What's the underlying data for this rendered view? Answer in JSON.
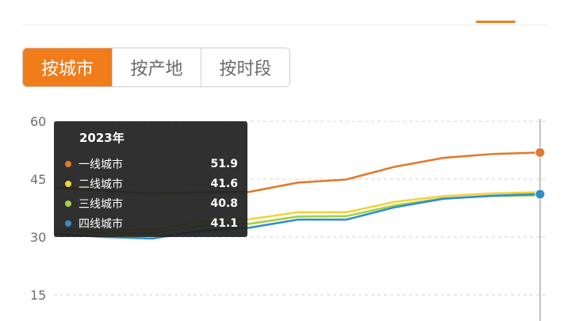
{
  "tabs": [
    {
      "label": "按城市",
      "active": true
    },
    {
      "label": "按产地",
      "active": false
    },
    {
      "label": "按时段",
      "active": false
    }
  ],
  "tooltip": {
    "title": "2023年",
    "rows": [
      {
        "name": "一线城市",
        "value": "51.9",
        "color": "#e07a2c"
      },
      {
        "name": "二线城市",
        "value": "41.6",
        "color": "#f2d23c"
      },
      {
        "name": "三线城市",
        "value": "40.8",
        "color": "#a8cf45"
      },
      {
        "name": "四线城市",
        "value": "41.1",
        "color": "#2f8fc9"
      }
    ]
  },
  "chart_data": {
    "type": "line",
    "y_ticks": [
      60,
      45,
      30,
      15
    ],
    "ylim": [
      12,
      60
    ],
    "grid": true,
    "x": [
      0,
      1,
      2,
      3,
      4,
      5,
      6,
      7,
      8,
      9,
      10
    ],
    "series": [
      {
        "name": "一线城市",
        "color": "#e07a2c",
        "values": [
          42.8,
          41.9,
          41.3,
          41.6,
          41.7,
          44.1,
          44.9,
          48.2,
          50.5,
          51.5,
          51.9
        ]
      },
      {
        "name": "二线城市",
        "color": "#f2d23c",
        "values": [
          32.2,
          31.4,
          31.9,
          33.8,
          34.6,
          36.4,
          36.4,
          39.1,
          40.6,
          41.3,
          41.6
        ]
      },
      {
        "name": "三线城市",
        "color": "#a8cf45",
        "values": [
          31.8,
          30.9,
          31.0,
          32.9,
          33.4,
          35.3,
          35.4,
          38.2,
          40.0,
          40.6,
          40.8
        ]
      },
      {
        "name": "四线城市",
        "color": "#2f8fc9",
        "values": [
          30.8,
          30.0,
          29.6,
          31.6,
          32.4,
          34.5,
          34.5,
          37.7,
          39.9,
          40.7,
          41.1
        ]
      }
    ]
  }
}
